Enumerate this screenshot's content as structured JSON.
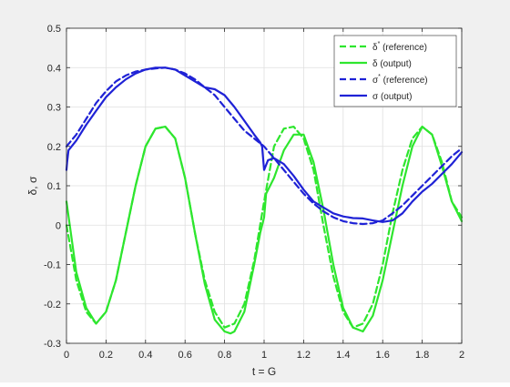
{
  "chart_data": {
    "type": "line",
    "title": "",
    "xlabel": "t = G",
    "ylabel": "δ, σ",
    "xlim": [
      0,
      2
    ],
    "ylim": [
      -0.3,
      0.5
    ],
    "xticks": [
      0,
      0.2,
      0.4,
      0.6,
      0.8,
      1,
      1.2,
      1.4,
      1.6,
      1.8,
      2
    ],
    "xtick_labels": [
      "0",
      "0.2",
      "0.4",
      "0.6",
      "0.8",
      "1",
      "1.2",
      "1.4",
      "1.6",
      "1.8",
      "2"
    ],
    "yticks": [
      -0.3,
      -0.2,
      -0.1,
      0,
      0.1,
      0.2,
      0.3,
      0.4,
      0.5
    ],
    "ytick_labels": [
      "-0.3",
      "-0.2",
      "-0.1",
      "0",
      "0.1",
      "0.2",
      "0.3",
      "0.4",
      "0.5"
    ],
    "grid": true,
    "legend_position": "top-right",
    "series": [
      {
        "name": "δ* (reference)",
        "name_main": "δ",
        "name_sup": "*",
        "name_rest": " (reference)",
        "color": "#2ee62e",
        "dash": true,
        "x": [
          0,
          0.05,
          0.1,
          0.15,
          0.2,
          0.25,
          0.3,
          0.35,
          0.4,
          0.45,
          0.5,
          0.55,
          0.6,
          0.65,
          0.7,
          0.75,
          0.8,
          0.85,
          0.9,
          0.95,
          1.0,
          1.05,
          1.1,
          1.15,
          1.2,
          1.25,
          1.3,
          1.35,
          1.4,
          1.45,
          1.5,
          1.55,
          1.6,
          1.65,
          1.7,
          1.75,
          1.8,
          1.85,
          1.9,
          1.95,
          2.0
        ],
        "y": [
          0.0,
          -0.14,
          -0.22,
          -0.25,
          -0.22,
          -0.14,
          -0.02,
          0.1,
          0.2,
          0.245,
          0.25,
          0.22,
          0.12,
          -0.02,
          -0.14,
          -0.22,
          -0.26,
          -0.25,
          -0.2,
          -0.09,
          0.06,
          0.2,
          0.245,
          0.25,
          0.22,
          0.14,
          0.0,
          -0.13,
          -0.22,
          -0.26,
          -0.25,
          -0.2,
          -0.1,
          0.03,
          0.14,
          0.22,
          0.25,
          0.23,
          0.16,
          0.06,
          0.02
        ]
      },
      {
        "name": "δ (output)",
        "name_main": "δ",
        "name_sup": "",
        "name_rest": " (output)",
        "color": "#2ee62e",
        "dash": false,
        "x": [
          0,
          0.05,
          0.1,
          0.15,
          0.2,
          0.25,
          0.3,
          0.35,
          0.4,
          0.45,
          0.5,
          0.55,
          0.6,
          0.65,
          0.7,
          0.75,
          0.8,
          0.83,
          0.85,
          0.9,
          0.95,
          0.98,
          1.0,
          1.01,
          1.05,
          1.1,
          1.15,
          1.2,
          1.25,
          1.3,
          1.35,
          1.4,
          1.45,
          1.5,
          1.55,
          1.6,
          1.65,
          1.7,
          1.75,
          1.8,
          1.85,
          1.9,
          1.95,
          2.0
        ],
        "y": [
          0.06,
          -0.12,
          -0.21,
          -0.25,
          -0.22,
          -0.14,
          -0.02,
          0.1,
          0.2,
          0.245,
          0.25,
          0.22,
          0.12,
          -0.02,
          -0.15,
          -0.24,
          -0.27,
          -0.275,
          -0.27,
          -0.22,
          -0.1,
          -0.02,
          0.02,
          0.08,
          0.12,
          0.19,
          0.23,
          0.23,
          0.16,
          0.04,
          -0.1,
          -0.21,
          -0.26,
          -0.27,
          -0.23,
          -0.14,
          -0.02,
          0.1,
          0.2,
          0.25,
          0.23,
          0.15,
          0.06,
          0.01
        ]
      },
      {
        "name": "σ* (reference)",
        "name_main": "σ",
        "name_sup": "*",
        "name_rest": " (reference)",
        "color": "#1f22d6",
        "dash": true,
        "x": [
          0,
          0.05,
          0.1,
          0.15,
          0.2,
          0.25,
          0.3,
          0.35,
          0.4,
          0.45,
          0.5,
          0.55,
          0.6,
          0.65,
          0.7,
          0.75,
          0.8,
          0.85,
          0.9,
          0.95,
          1.0,
          1.05,
          1.1,
          1.15,
          1.2,
          1.25,
          1.3,
          1.35,
          1.4,
          1.45,
          1.5,
          1.55,
          1.6,
          1.65,
          1.7,
          1.75,
          1.8,
          1.85,
          1.9,
          1.95,
          2.0
        ],
        "y": [
          0.2,
          0.23,
          0.27,
          0.31,
          0.34,
          0.365,
          0.38,
          0.39,
          0.395,
          0.398,
          0.4,
          0.395,
          0.385,
          0.37,
          0.35,
          0.33,
          0.3,
          0.27,
          0.24,
          0.22,
          0.2,
          0.17,
          0.14,
          0.11,
          0.08,
          0.055,
          0.035,
          0.02,
          0.01,
          0.005,
          0.003,
          0.005,
          0.012,
          0.03,
          0.05,
          0.075,
          0.1,
          0.125,
          0.15,
          0.175,
          0.195
        ]
      },
      {
        "name": "σ (output)",
        "name_main": "σ",
        "name_sup": "",
        "name_rest": " (output)",
        "color": "#1f22d6",
        "dash": false,
        "x": [
          0,
          0.003,
          0.01,
          0.05,
          0.1,
          0.15,
          0.2,
          0.25,
          0.3,
          0.35,
          0.4,
          0.45,
          0.5,
          0.55,
          0.6,
          0.65,
          0.7,
          0.75,
          0.8,
          0.85,
          0.9,
          0.95,
          0.98,
          0.99,
          1.0,
          1.02,
          1.05,
          1.1,
          1.15,
          1.2,
          1.25,
          1.3,
          1.35,
          1.4,
          1.45,
          1.5,
          1.55,
          1.6,
          1.65,
          1.7,
          1.75,
          1.8,
          1.85,
          1.9,
          1.95,
          2.0
        ],
        "y": [
          0.14,
          0.16,
          0.19,
          0.215,
          0.255,
          0.29,
          0.325,
          0.35,
          0.37,
          0.385,
          0.395,
          0.4,
          0.4,
          0.395,
          0.38,
          0.365,
          0.35,
          0.345,
          0.33,
          0.3,
          0.265,
          0.23,
          0.21,
          0.2,
          0.14,
          0.165,
          0.17,
          0.155,
          0.125,
          0.09,
          0.06,
          0.045,
          0.03,
          0.022,
          0.018,
          0.017,
          0.012,
          0.008,
          0.012,
          0.03,
          0.06,
          0.085,
          0.105,
          0.13,
          0.155,
          0.185
        ]
      }
    ]
  }
}
